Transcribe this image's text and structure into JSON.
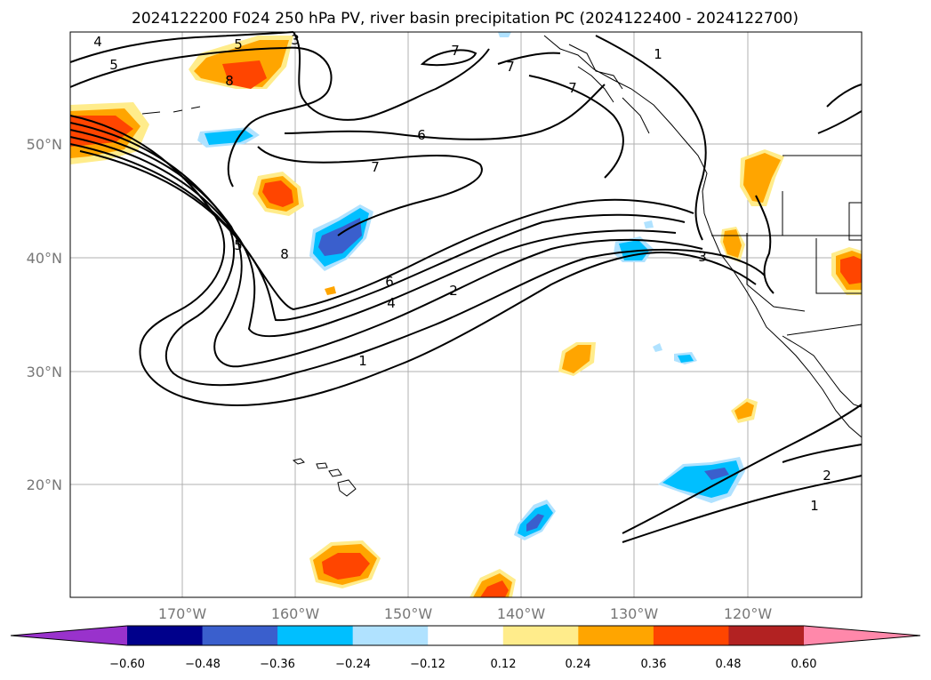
{
  "title": "2024122200 F024 250 hPa PV, river basin precipitation PC (2024122400 - 2024122700)",
  "map": {
    "lat_labels": [
      "50°N",
      "40°N",
      "30°N",
      "20°N"
    ],
    "lon_labels": [
      "170°W",
      "160°W",
      "150°W",
      "140°W",
      "130°W",
      "120°W"
    ],
    "grid": true
  },
  "pv_contour_labels": [
    "4",
    "5",
    "5",
    "3",
    "8",
    "7",
    "7",
    "7",
    "6",
    "7",
    "1",
    "5",
    "8",
    "6",
    "4",
    "2",
    "1",
    "3",
    "2",
    "1"
  ],
  "colorbar": {
    "tick_labels": [
      "−0.60",
      "−0.48",
      "−0.36",
      "−0.24",
      "−0.12",
      "0.12",
      "0.24",
      "0.36",
      "0.48",
      "0.60"
    ],
    "colors": [
      "#9932cc",
      "#00008b",
      "#3a5fcd",
      "#00bfff",
      "#b0e2ff",
      "#ffffff",
      "#ffec8b",
      "#ffa500",
      "#ff4500",
      "#b22222",
      "#ff88aa"
    ]
  }
}
